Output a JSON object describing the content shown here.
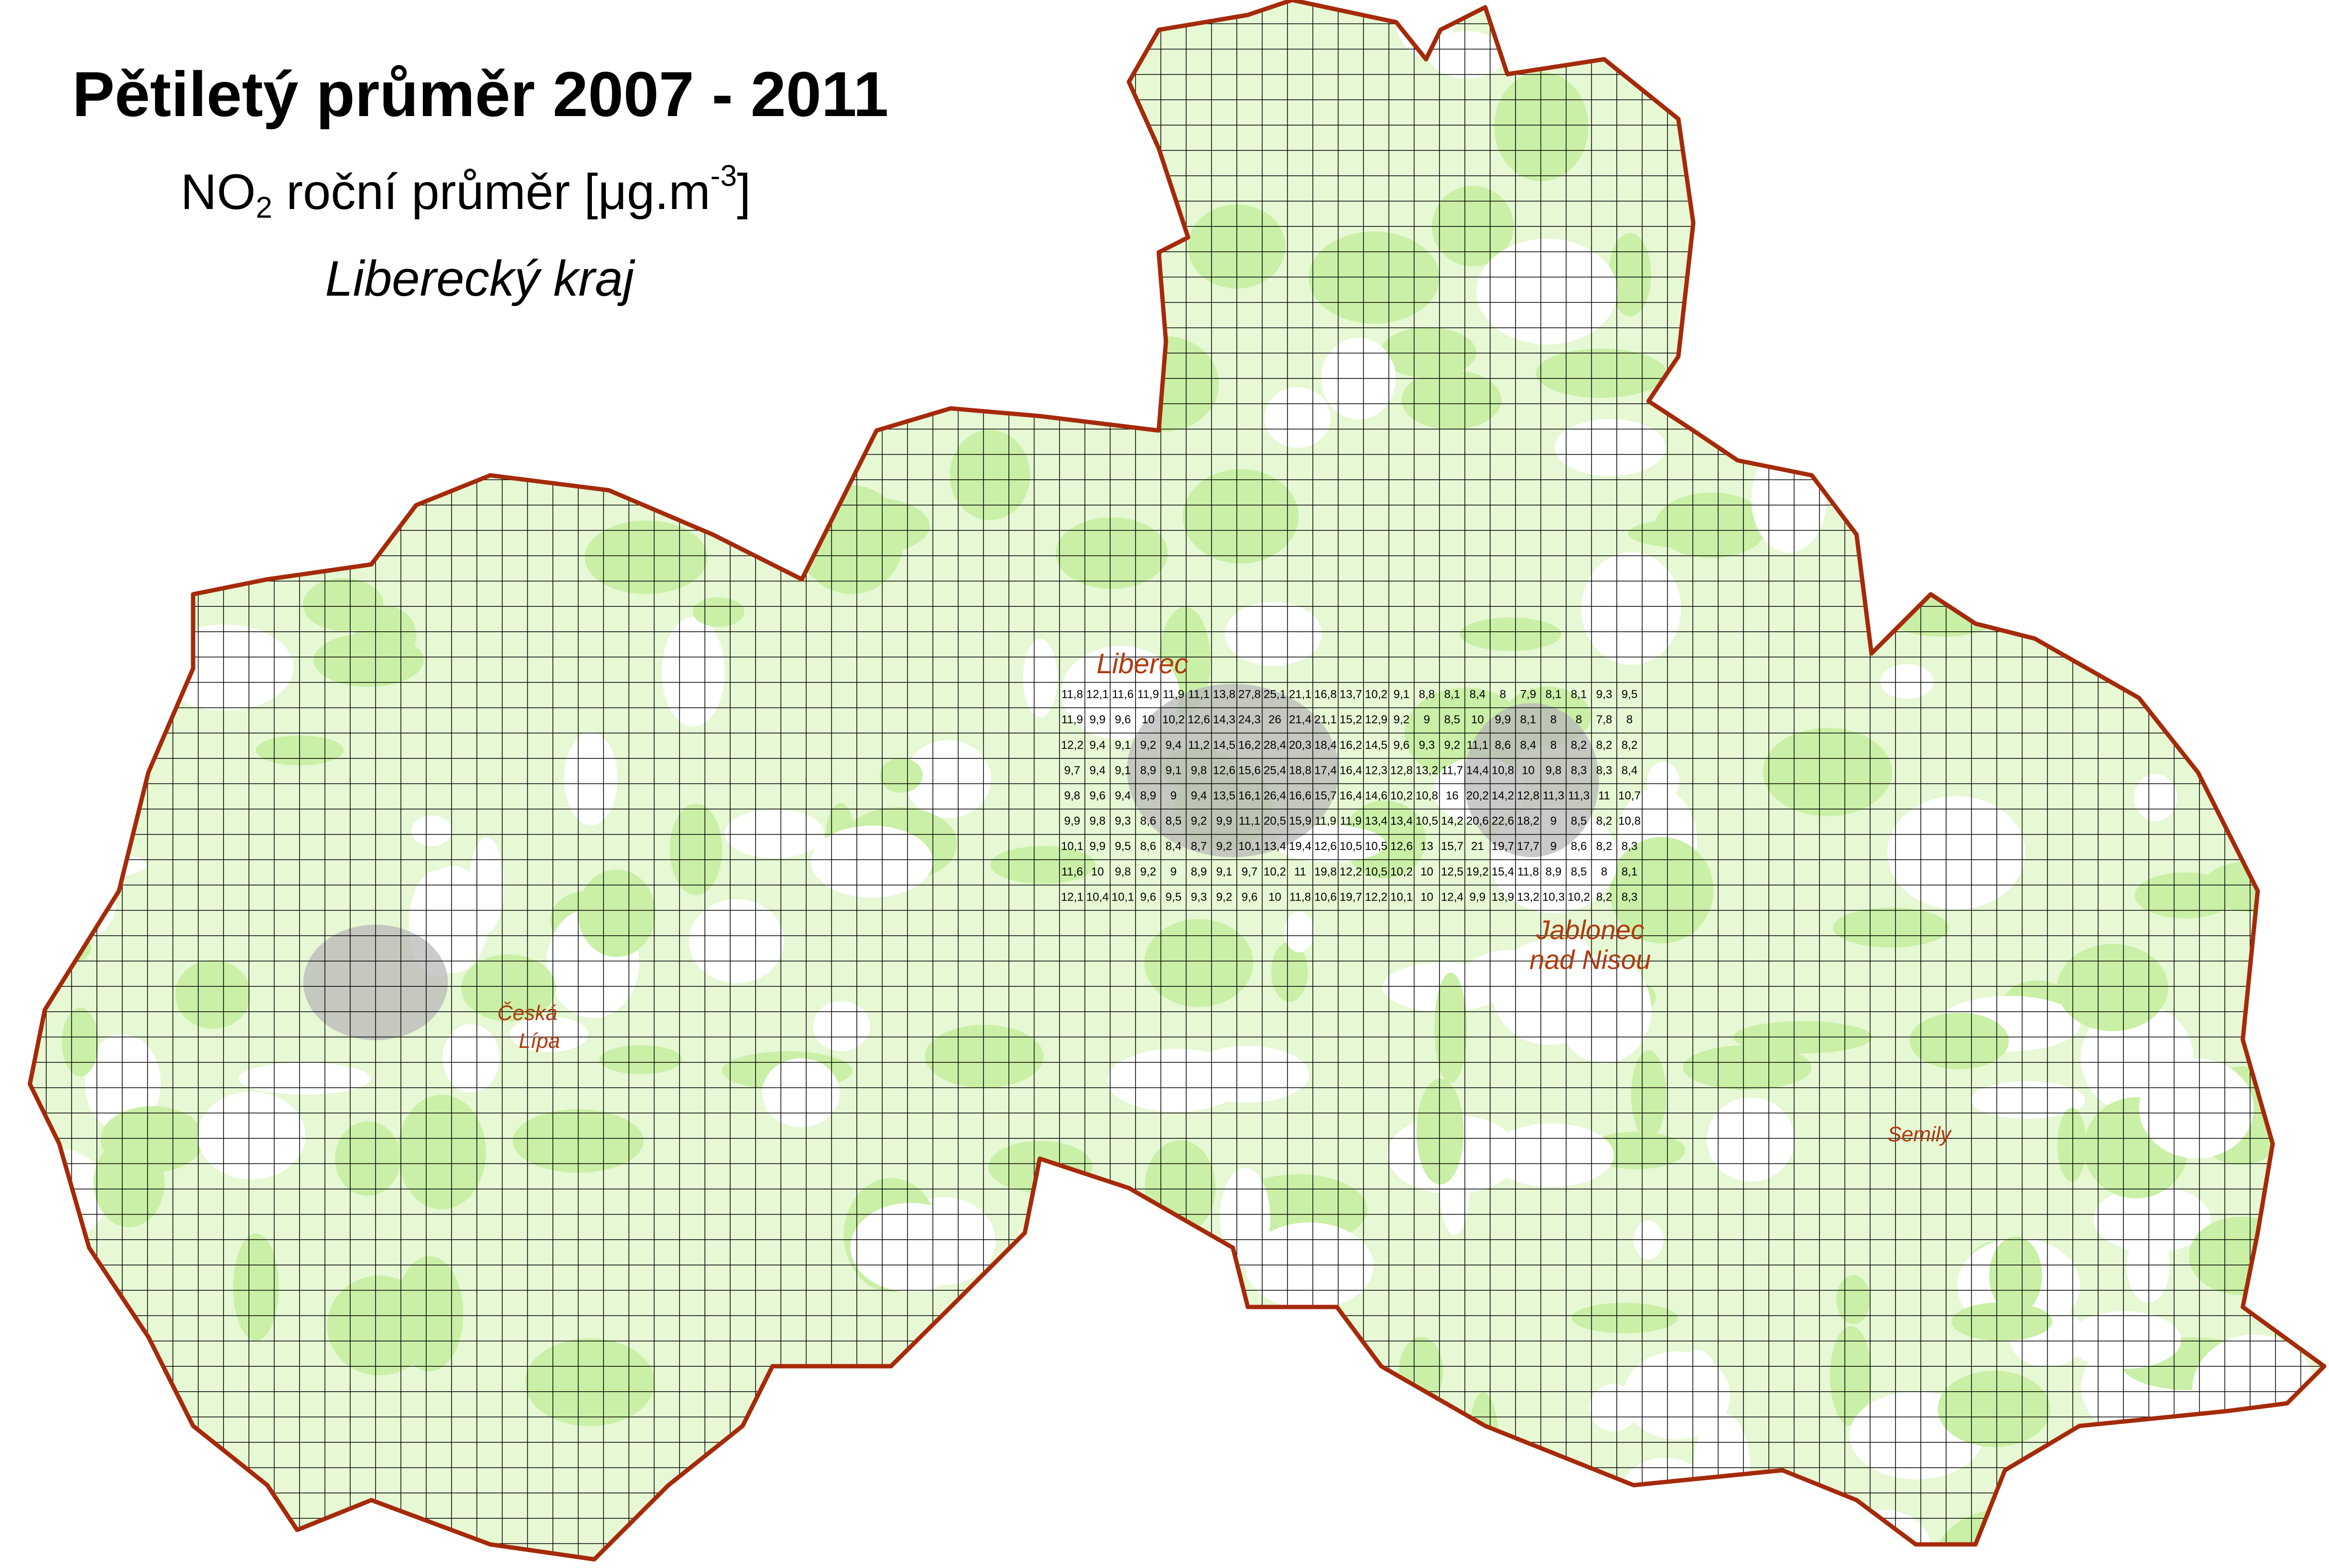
{
  "title": "Pětiletý průměr 2007 - 2011",
  "subtitle": {
    "prefix": "NO",
    "sub": "2",
    "middle": " roční průměr [μg.m",
    "sup": "-3",
    "suffix": "]"
  },
  "region": "Liberecký kraj",
  "colors": {
    "boundary": "#a52a0a",
    "vegetation": "#d9f5c0",
    "urban": "#b0b0b0",
    "grid": "#000000",
    "town_label": "#b03a10",
    "water": "#8cc8f0"
  },
  "towns": [
    {
      "name": "Liberec",
      "size": "large"
    },
    {
      "name": "Jablonec",
      "size": "large"
    },
    {
      "name": "nad Nisou",
      "size": "large"
    },
    {
      "name": "Česká",
      "size": "medium"
    },
    {
      "name": "Lípa",
      "size": "medium"
    },
    {
      "name": "Semily",
      "size": "medium"
    }
  ],
  "grid_sample": [
    [
      "11,8",
      "12,1",
      "11,6",
      "11,9",
      "11,9",
      "11,1",
      "13,8",
      "27,8",
      "25,1",
      "21,1",
      "16,8",
      "13,7",
      "10,2",
      "9,1",
      "8,8",
      "8,1",
      "8,4",
      "8",
      "7,9",
      "8,1",
      "8,1",
      "9,3",
      "9,5"
    ],
    [
      "11,9",
      "9,9",
      "9,6",
      "10",
      "10,2",
      "12,6",
      "14,3",
      "24,3",
      "26",
      "21,4",
      "21,1",
      "15,2",
      "12,9",
      "9,2",
      "9",
      "8,5",
      "10",
      "9,9",
      "8,1",
      "8",
      "8",
      "7,8",
      "8"
    ],
    [
      "12,2",
      "9,4",
      "9,1",
      "9,2",
      "9,4",
      "11,2",
      "14,5",
      "16,2",
      "28,4",
      "20,3",
      "18,4",
      "16,2",
      "14,5",
      "9,6",
      "9,3",
      "9,2",
      "11,1",
      "8,6",
      "8,4",
      "8",
      "8,2",
      "8,2",
      "8,2"
    ],
    [
      "9,7",
      "9,4",
      "9,1",
      "8,9",
      "9,1",
      "9,8",
      "12,6",
      "15,6",
      "25,4",
      "18,8",
      "17,4",
      "16,4",
      "12,3",
      "12,8",
      "13,2",
      "11,7",
      "14,4",
      "10,8",
      "10",
      "9,8",
      "8,3",
      "8,3",
      "8,4"
    ],
    [
      "9,8",
      "9,6",
      "9,4",
      "8,9",
      "9",
      "9,4",
      "13,5",
      "16,1",
      "26,4",
      "16,6",
      "15,7",
      "16,4",
      "14,6",
      "10,2",
      "10,8",
      "16",
      "20,2",
      "14,2",
      "12,8",
      "11,3",
      "11,3",
      "11",
      "10,7"
    ],
    [
      "9,9",
      "9,8",
      "9,3",
      "8,6",
      "8,5",
      "9,2",
      "9,9",
      "11,1",
      "20,5",
      "15,9",
      "11,9",
      "11,9",
      "13,4",
      "13,4",
      "10,5",
      "14,2",
      "20,6",
      "22,6",
      "18,2",
      "9",
      "8,5",
      "8,2",
      "10,8"
    ],
    [
      "10,1",
      "9,9",
      "9,5",
      "8,6",
      "8,4",
      "8,7",
      "9,2",
      "10,1",
      "13,4",
      "19,4",
      "12,6",
      "10,5",
      "10,5",
      "12,6",
      "13",
      "15,7",
      "21",
      "19,7",
      "17,7",
      "9",
      "8,6",
      "8,2",
      "8,3"
    ],
    [
      "11,6",
      "10",
      "9,8",
      "9,2",
      "9",
      "8,9",
      "9,1",
      "9,7",
      "10,2",
      "11",
      "19,8",
      "12,2",
      "10,5",
      "10,2",
      "10",
      "12,5",
      "19,2",
      "15,4",
      "11,8",
      "8,9",
      "8,5",
      "8",
      "8,1"
    ],
    [
      "12,1",
      "10,4",
      "10,1",
      "9,6",
      "9,5",
      "9,3",
      "9,2",
      "9,6",
      "10",
      "11,8",
      "10,6",
      "19,7",
      "12,2",
      "10,1",
      "10",
      "12,4",
      "9,9",
      "13,9",
      "13,2",
      "10,3",
      "10,2",
      "8,2",
      "8,3"
    ]
  ]
}
